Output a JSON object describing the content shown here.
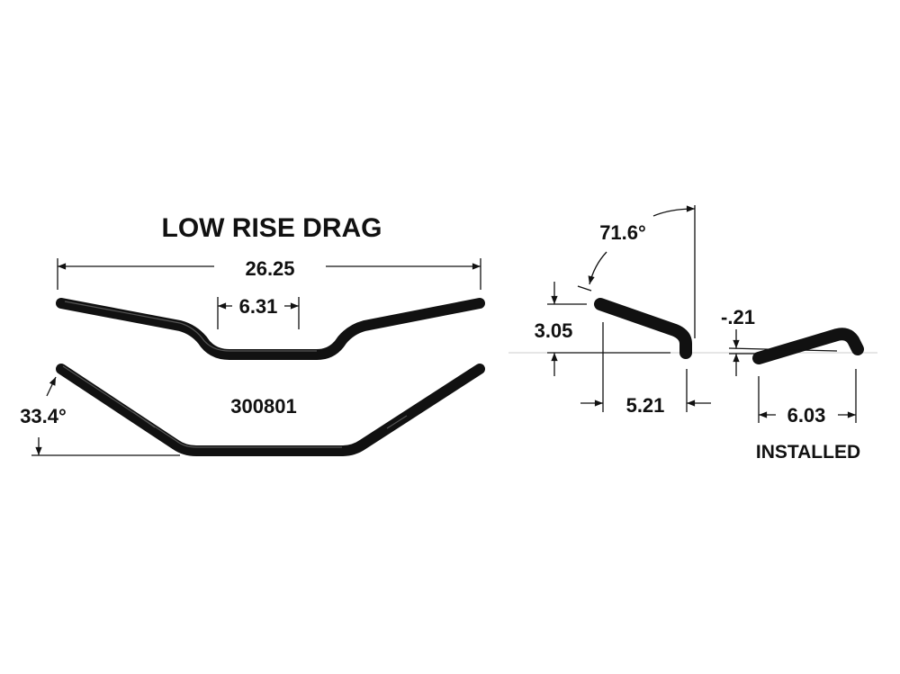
{
  "title": "LOW RISE DRAG",
  "part_number": "300801",
  "dimensions": {
    "overall_width": "26.25",
    "center_width": "6.31",
    "sweep_angle": "33.4°",
    "rise_angle": "71.6°",
    "rise": "3.05",
    "pullback": "5.21",
    "installed_rise": "-.21",
    "installed_pullback": "6.03"
  },
  "installed_label": "INSTALLED",
  "colors": {
    "ink": "#111111",
    "background": "#ffffff"
  }
}
